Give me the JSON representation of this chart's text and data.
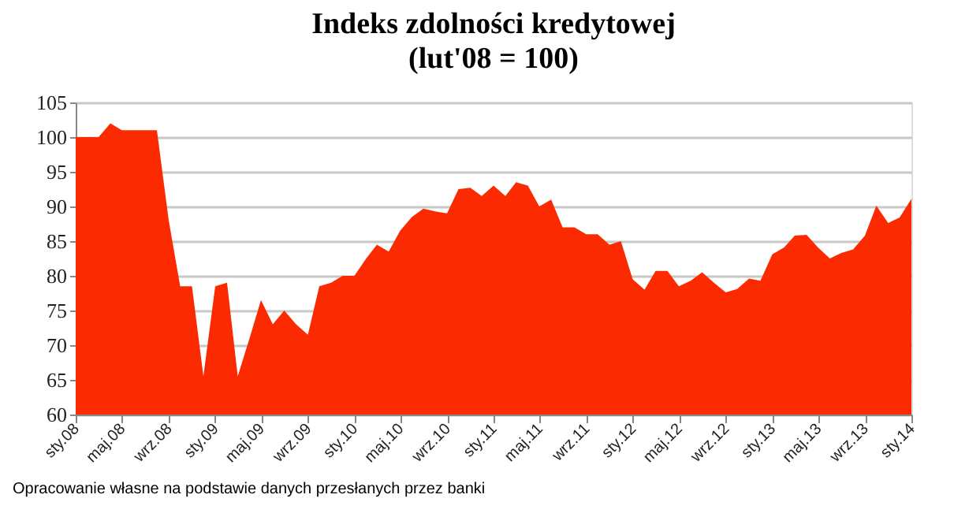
{
  "chart_data": {
    "type": "area",
    "title": "Indeks zdolności kredytowej",
    "subtitle": "(lut'08 = 100)",
    "x": [
      "2008-01",
      "2008-02",
      "2008-03",
      "2008-04",
      "2008-05",
      "2008-06",
      "2008-07",
      "2008-08",
      "2008-09",
      "2008-10",
      "2008-11",
      "2008-12",
      "2009-01",
      "2009-02",
      "2009-03",
      "2009-04",
      "2009-05",
      "2009-06",
      "2009-07",
      "2009-08",
      "2009-09",
      "2009-10",
      "2009-11",
      "2009-12",
      "2010-01",
      "2010-02",
      "2010-03",
      "2010-04",
      "2010-05",
      "2010-06",
      "2010-07",
      "2010-08",
      "2010-09",
      "2010-10",
      "2010-11",
      "2010-12",
      "2011-01",
      "2011-02",
      "2011-03",
      "2011-04",
      "2011-05",
      "2011-06",
      "2011-07",
      "2011-08",
      "2011-09",
      "2011-10",
      "2011-11",
      "2011-12",
      "2012-01",
      "2012-02",
      "2012-03",
      "2012-04",
      "2012-05",
      "2012-06",
      "2012-07",
      "2012-08",
      "2012-09",
      "2012-10",
      "2012-11",
      "2012-12",
      "2013-01",
      "2013-02",
      "2013-03",
      "2013-04",
      "2013-05",
      "2013-06",
      "2013-07",
      "2013-08",
      "2013-09",
      "2013-10",
      "2013-11",
      "2013-12",
      "2014-01"
    ],
    "series": [
      {
        "color": "#fb2a00",
        "values": [
          100,
          100,
          100,
          102,
          101,
          101,
          101,
          101,
          88,
          78.5,
          78.5,
          65.5,
          78.5,
          79,
          65.5,
          71,
          76.5,
          73,
          75,
          73,
          71.5,
          78.5,
          79,
          80,
          80,
          82.5,
          84.5,
          83.5,
          86.5,
          88.5,
          89.7,
          89.3,
          89,
          92.5,
          92.7,
          91.5,
          93,
          91.5,
          93.5,
          93,
          90,
          91,
          87,
          87,
          86,
          86,
          84.5,
          85,
          79.5,
          78,
          80.7,
          80.7,
          78.5,
          79.3,
          80.5,
          79,
          77.6,
          78.1,
          79.6,
          79.3,
          83.1,
          84.1,
          85.8,
          85.9,
          84.1,
          82.5,
          83.3,
          83.8,
          85.8,
          90.1,
          87.6,
          88.4,
          91.1
        ]
      }
    ],
    "xlim": [
      "2008-01",
      "2014-01"
    ],
    "xticks": [
      {
        "value": "2008-01",
        "label": "sty.08"
      },
      {
        "value": "2008-05",
        "label": "maj.08"
      },
      {
        "value": "2008-09",
        "label": "wrz.08"
      },
      {
        "value": "2009-01",
        "label": "sty.09"
      },
      {
        "value": "2009-05",
        "label": "maj.09"
      },
      {
        "value": "2009-09",
        "label": "wrz.09"
      },
      {
        "value": "2010-01",
        "label": "sty.10"
      },
      {
        "value": "2010-05",
        "label": "maj.10"
      },
      {
        "value": "2010-09",
        "label": "wrz.10"
      },
      {
        "value": "2011-01",
        "label": "sty.11"
      },
      {
        "value": "2011-05",
        "label": "maj.11"
      },
      {
        "value": "2011-09",
        "label": "wrz.11"
      },
      {
        "value": "2012-01",
        "label": "sty.12"
      },
      {
        "value": "2012-05",
        "label": "maj.12"
      },
      {
        "value": "2012-09",
        "label": "wrz.12"
      },
      {
        "value": "2013-01",
        "label": "sty.13"
      },
      {
        "value": "2013-05",
        "label": "maj.13"
      },
      {
        "value": "2013-09",
        "label": "wrz.13"
      },
      {
        "value": "2014-01",
        "label": "sty.14"
      }
    ],
    "ylim": [
      60,
      105
    ],
    "yticks": [
      60,
      65,
      70,
      75,
      80,
      85,
      90,
      95,
      100,
      105
    ],
    "grid": "y",
    "annotations": [
      "Opracowanie własne na podstawie danych przesłanych przez banki"
    ]
  }
}
